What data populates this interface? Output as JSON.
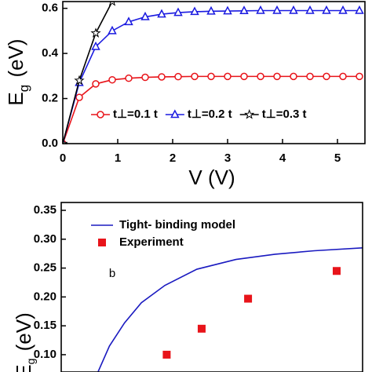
{
  "chart_data": [
    {
      "type": "line",
      "x": [
        0,
        0.3,
        0.6,
        0.9,
        1.2,
        1.5,
        1.8,
        2.1,
        2.4,
        2.7,
        3.0,
        3.3,
        3.6,
        3.9,
        4.2,
        4.5,
        4.8,
        5.1,
        5.4
      ],
      "xlim": [
        0,
        5.5
      ],
      "xticks": [
        0,
        1,
        2,
        3,
        4,
        5
      ],
      "ylim": [
        0,
        0.63
      ],
      "yticks": [
        {
          "value": 0,
          "label": "0.0"
        },
        0.2,
        0.4,
        0.6
      ],
      "x_label": "V (V)",
      "y_label": [
        "E",
        "g",
        " (eV)"
      ],
      "series": [
        {
          "name": "t⊥=0.1 t",
          "color": "#e8141a",
          "marker": "circle",
          "style": "line+markers",
          "values": [
            0,
            0.205,
            0.265,
            0.283,
            0.29,
            0.294,
            0.296,
            0.297,
            0.298,
            0.298,
            0.298,
            0.298,
            0.298,
            0.298,
            0.298,
            0.298,
            0.298,
            0.298,
            0.298
          ]
        },
        {
          "name": "t⊥=0.2 t",
          "color": "#1a1ae0",
          "marker": "triangle",
          "style": "line+markers",
          "values": [
            0,
            0.27,
            0.43,
            0.5,
            0.54,
            0.562,
            0.574,
            0.581,
            0.585,
            0.587,
            0.588,
            0.589,
            0.59,
            0.59,
            0.59,
            0.59,
            0.59,
            0.59,
            0.59
          ]
        },
        {
          "name": "t⊥=0.3 t",
          "color": "#000000",
          "marker": "star",
          "style": "line+markers",
          "values": [
            0,
            0.28,
            0.49,
            0.63,
            null,
            null,
            null,
            null,
            null,
            null,
            null,
            null,
            null,
            null,
            null,
            null,
            null,
            null,
            null
          ]
        }
      ]
    },
    {
      "type": "line",
      "xlim": [
        0,
        10
      ],
      "ylim": [
        0.07,
        0.3636
      ],
      "yticks": [
        {
          "value": 0.1,
          "label": "0.10"
        },
        0.15,
        {
          "value": 0.2,
          "label": "0.20"
        },
        0.25,
        {
          "value": 0.3,
          "label": "0.30"
        },
        0.35
      ],
      "y_label": [
        "E",
        "g",
        " (eV)"
      ],
      "annotation": "b",
      "series": [
        {
          "name": "Tight- binding model",
          "color": "#1a1ac0",
          "style": "line",
          "x": [
            1.22,
            1.6,
            2.1,
            2.66,
            3.44,
            4.5,
            5.8,
            7.1,
            8.4,
            10
          ],
          "values": [
            0.07,
            0.115,
            0.155,
            0.19,
            0.22,
            0.248,
            0.265,
            0.274,
            0.28,
            0.285
          ]
        },
        {
          "name": "Experiment",
          "color": "#e8141a",
          "style": "markers",
          "marker": "square",
          "x": [
            3.5,
            4.66,
            6.2,
            9.14
          ],
          "values": [
            0.1,
            0.145,
            0.197,
            0.245
          ]
        }
      ]
    }
  ]
}
